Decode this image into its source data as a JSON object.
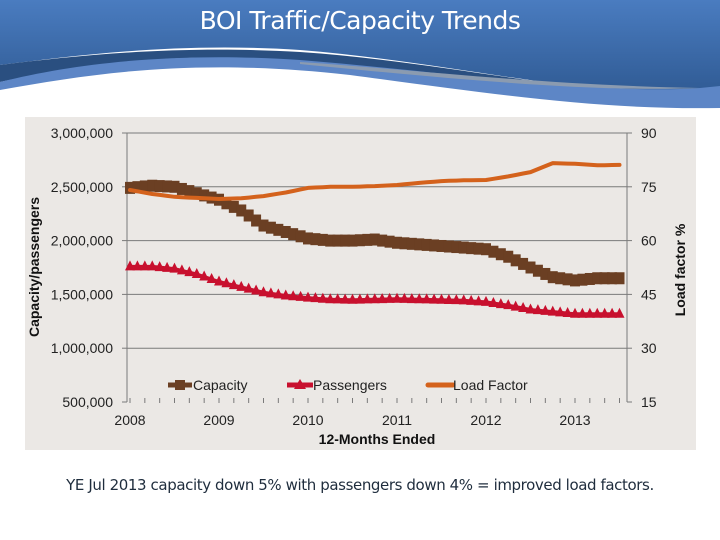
{
  "slide": {
    "title": "BOI Traffic/Capacity Trends",
    "footer": "YE Jul 2013 capacity down 5% with passengers down 4% = improved load factors."
  },
  "colors": {
    "capacity": "#6b3f23",
    "passengers": "#c8102e",
    "load_factor": "#d4621c",
    "header_blue": "#3a6cae"
  },
  "chart_data": {
    "type": "line",
    "title": "",
    "xlabel": "12-Months Ended",
    "ylabel": "Capacity/passengers",
    "ylabel_right": "Load factor %",
    "x_tick_labels": [
      "2008",
      "2009",
      "2010",
      "2011",
      "2012",
      "2013"
    ],
    "x_range": [
      2008.0,
      2013.5
    ],
    "ylim": [
      500000,
      3000000
    ],
    "y_ticks": [
      "3,000,000",
      "2,500,000",
      "2,000,000",
      "1,500,000",
      "1,000,000",
      "500,000"
    ],
    "ylim_right": [
      15,
      90
    ],
    "y_ticks_right": [
      "90",
      "75",
      "60",
      "45",
      "30",
      "15"
    ],
    "grid": "horizontal",
    "legend_position": "bottom-inside",
    "legend": [
      "Capacity",
      "Passengers",
      "Load Factor"
    ],
    "series": [
      {
        "name": "Capacity",
        "axis": "left",
        "marker": "square",
        "x": [
          2008.0,
          2008.25,
          2008.5,
          2008.75,
          2009.0,
          2009.25,
          2009.5,
          2009.75,
          2010.0,
          2010.25,
          2010.5,
          2010.75,
          2011.0,
          2011.25,
          2011.5,
          2011.75,
          2012.0,
          2012.25,
          2012.5,
          2012.75,
          2013.0,
          2013.25,
          2013.5
        ],
        "values": [
          2490000,
          2510000,
          2500000,
          2440000,
          2380000,
          2280000,
          2140000,
          2080000,
          2020000,
          2000000,
          2000000,
          2010000,
          1980000,
          1965000,
          1950000,
          1935000,
          1920000,
          1850000,
          1750000,
          1660000,
          1630000,
          1650000,
          1650000
        ]
      },
      {
        "name": "Passengers",
        "axis": "left",
        "marker": "triangle",
        "x": [
          2008.0,
          2008.25,
          2008.5,
          2008.75,
          2009.0,
          2009.25,
          2009.5,
          2009.75,
          2010.0,
          2010.25,
          2010.5,
          2010.75,
          2011.0,
          2011.25,
          2011.5,
          2011.75,
          2012.0,
          2012.25,
          2012.5,
          2012.75,
          2013.0,
          2013.25,
          2013.5
        ],
        "values": [
          1760000,
          1760000,
          1740000,
          1690000,
          1620000,
          1570000,
          1520000,
          1490000,
          1470000,
          1455000,
          1450000,
          1455000,
          1460000,
          1455000,
          1450000,
          1445000,
          1430000,
          1400000,
          1360000,
          1340000,
          1320000,
          1320000,
          1320000
        ]
      },
      {
        "name": "Load Factor",
        "axis": "right",
        "marker": "none",
        "x": [
          2008.0,
          2008.25,
          2008.5,
          2008.75,
          2009.0,
          2009.25,
          2009.5,
          2009.75,
          2010.0,
          2010.25,
          2010.5,
          2010.75,
          2011.0,
          2011.25,
          2011.5,
          2011.75,
          2012.0,
          2012.25,
          2012.5,
          2012.75,
          2013.0,
          2013.25,
          2013.5
        ],
        "values": [
          74.1,
          73.0,
          72.2,
          71.9,
          71.6,
          71.8,
          72.4,
          73.4,
          74.7,
          75.0,
          75.0,
          75.2,
          75.5,
          76.1,
          76.6,
          76.8,
          76.9,
          77.9,
          79.1,
          81.6,
          81.4,
          81.0,
          81.1
        ]
      }
    ]
  }
}
